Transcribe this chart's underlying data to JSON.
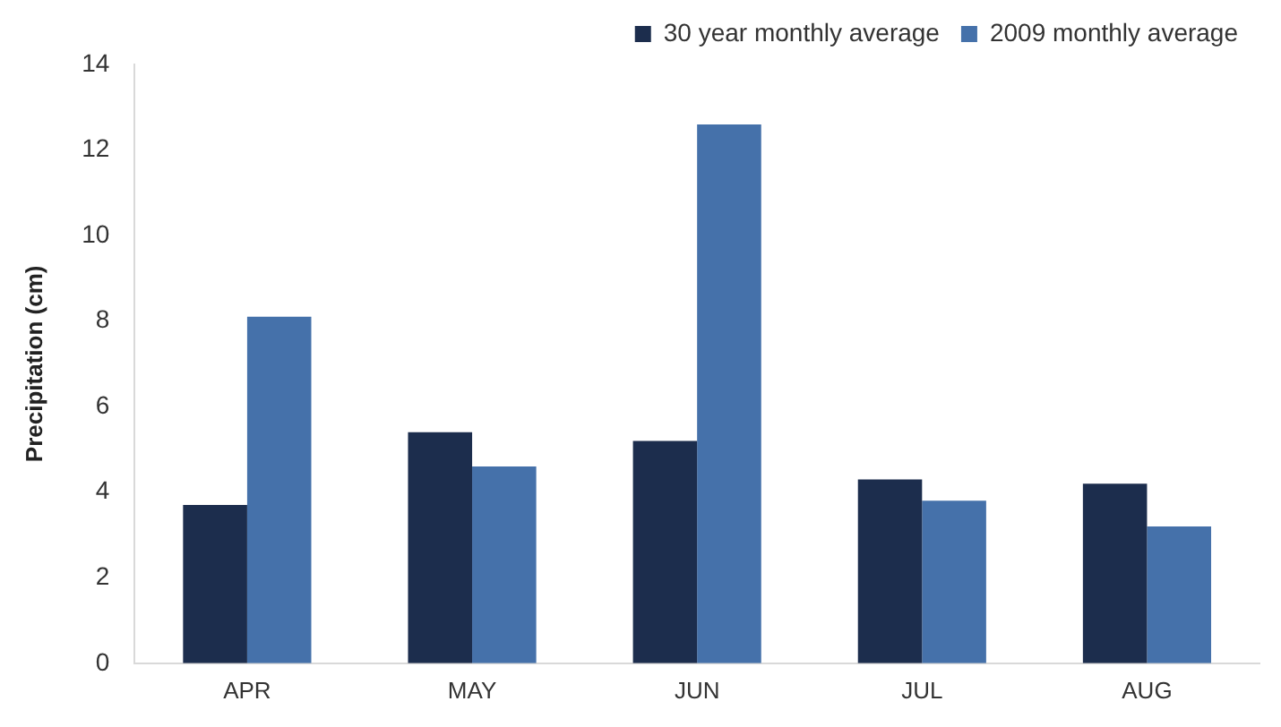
{
  "chart_data": {
    "type": "bar",
    "ylabel": "Precipitation (cm)",
    "categories": [
      "APR",
      "MAY",
      "JUN",
      "JUL",
      "AUG"
    ],
    "series": [
      {
        "name": "30 year monthly average",
        "color": "#1c2d4d",
        "values": [
          3.7,
          5.4,
          5.2,
          4.3,
          4.2
        ]
      },
      {
        "name": "2009 monthly average",
        "color": "#4571aa",
        "values": [
          8.1,
          4.6,
          12.6,
          3.8,
          3.2
        ]
      }
    ],
    "ylim": [
      0,
      14
    ],
    "yticks": [
      0,
      2,
      4,
      6,
      8,
      10,
      12,
      14
    ],
    "grid": false,
    "legend": "top right"
  }
}
